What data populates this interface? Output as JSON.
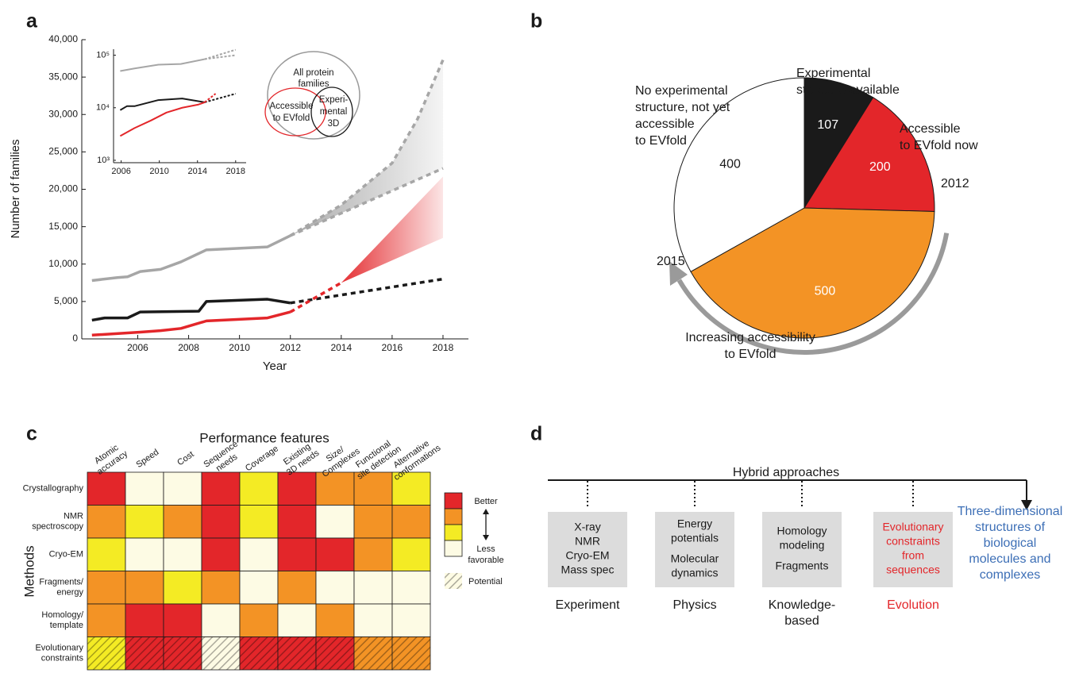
{
  "chart_data": [
    {
      "type": "line",
      "panel_label": "a",
      "xlabel": "Year",
      "ylabel": "Number of families",
      "xlim": [
        2003.8,
        2019
      ],
      "ylim": [
        0,
        40000
      ],
      "xticks": [
        2006,
        2008,
        2010,
        2012,
        2014,
        2016,
        2018
      ],
      "yticks": [
        0,
        {
          "value": 5000,
          "label": "5,000"
        },
        {
          "value": 10000,
          "label": "10,000"
        },
        {
          "value": 15000,
          "label": "15,000"
        },
        {
          "value": 20000,
          "label": "20,000"
        },
        {
          "value": 25000,
          "label": "25,000"
        },
        {
          "value": 30000,
          "label": "30,000"
        },
        {
          "value": 35000,
          "label": "35,000"
        },
        {
          "value": 40000,
          "label": "40,000"
        }
      ],
      "bands": [
        {
          "color": "#a6a6a6",
          "x": [
            2012,
            2014,
            2016,
            2017,
            2018
          ],
          "lower": [
            13800,
            16800,
            19800,
            21300,
            22800
          ],
          "upper": [
            13800,
            17900,
            23500,
            29400,
            37300
          ]
        },
        {
          "color": "#e3262a",
          "x": [
            2014,
            2018
          ],
          "lower": [
            7500,
            13500
          ],
          "upper": [
            7500,
            21700
          ]
        }
      ],
      "series": [
        {
          "color": "#a6a6a6",
          "x": [
            2004.2,
            2005.2,
            2005.6,
            2006.1,
            2006.9,
            2007.7,
            2008.7,
            2011.1,
            2012.0
          ],
          "values": [
            7800,
            8200,
            8300,
            9000,
            9300,
            10300,
            11900,
            12300,
            13800
          ]
        },
        {
          "color": "#1a1a1a",
          "x": [
            2004.2,
            2004.7,
            2005.6,
            2006.1,
            2008.4,
            2008.7,
            2011.1,
            2012.0
          ],
          "values": [
            2500,
            2800,
            2800,
            3600,
            3700,
            5000,
            5300,
            4800
          ]
        },
        {
          "color": "#e3262a",
          "x": [
            2004.2,
            2006.1,
            2006.9,
            2007.7,
            2008.7,
            2011.1,
            2012.0
          ],
          "values": [
            500,
            900,
            1100,
            1400,
            2400,
            2800,
            3600
          ]
        },
        {
          "color": "#a6a6a6",
          "dashed": true,
          "x": [
            2012,
            2014,
            2016,
            2017,
            2018
          ],
          "values": [
            13800,
            17900,
            23500,
            29400,
            37300
          ]
        },
        {
          "color": "#a6a6a6",
          "dashed": true,
          "x": [
            2012,
            2018
          ],
          "values": [
            13800,
            22800
          ]
        },
        {
          "color": "#1a1a1a",
          "dashed": true,
          "x": [
            2012,
            2018
          ],
          "values": [
            4800,
            8000
          ]
        },
        {
          "color": "#e3262a",
          "dashed": true,
          "x": [
            2012,
            2014
          ],
          "values": [
            3600,
            7500
          ]
        }
      ],
      "venn": {
        "outer": [
          "All protein",
          "families"
        ],
        "left": [
          "Accessible",
          "to EVfold"
        ],
        "right": [
          "Experi-",
          "mental",
          "3D"
        ]
      }
    },
    {
      "type": "line",
      "log_y": true,
      "xlim": [
        2005.2,
        2019.1
      ],
      "ylim": [
        900,
        130000
      ],
      "xticks": [
        2006,
        2010,
        2014,
        2018
      ],
      "yticks": [
        {
          "value": 1000,
          "label": "10³"
        },
        {
          "value": 10000,
          "label": "10⁴"
        },
        {
          "value": 100000,
          "label": "10⁵"
        }
      ],
      "series": [
        {
          "color": "#a6a6a6",
          "x": [
            2005.9,
            2007.4,
            2009.9,
            2012.25,
            2014.75
          ],
          "values": [
            50000,
            56000,
            66000,
            68000,
            84000
          ]
        },
        {
          "color": "#1a1a1a",
          "x": [
            2005.9,
            2006.6,
            2007.4,
            2009.9,
            2012.4,
            2014.75
          ],
          "values": [
            9000,
            10700,
            10700,
            14000,
            15000,
            12700
          ]
        },
        {
          "color": "#e3262a",
          "x": [
            2005.9,
            2007.4,
            2009.1,
            2010.75,
            2012.4,
            2014.1,
            2014.75
          ],
          "values": [
            2900,
            4100,
            5700,
            8100,
            10000,
            11500,
            12700
          ]
        },
        {
          "color": "#a6a6a6",
          "dashed": true,
          "x": [
            2014.75,
            2018
          ],
          "values": [
            84000,
            127000
          ]
        },
        {
          "color": "#a6a6a6",
          "dashed": true,
          "x": [
            2014.75,
            2018
          ],
          "values": [
            84000,
            100000
          ]
        },
        {
          "color": "#1a1a1a",
          "dashed": true,
          "x": [
            2014.75,
            2018
          ],
          "values": [
            12700,
            18500
          ]
        },
        {
          "color": "#e3262a",
          "dashed": true,
          "x": [
            2014.75,
            2015.9
          ],
          "values": [
            12700,
            18500
          ]
        }
      ]
    },
    {
      "type": "pie",
      "panel_label": "b",
      "values": [
        107,
        200,
        500,
        400
      ],
      "colors": [
        "#1a1a1a",
        "#e3262a",
        "#f39325",
        "#ffffff"
      ],
      "categories": [
        [
          "Experimental",
          "structure available"
        ],
        [
          "Accessible",
          "to EVfold now"
        ],
        null,
        [
          "No experimental",
          "structure, not yet",
          "accessible",
          "to EVfold"
        ]
      ],
      "annotations": {
        "start": "2012",
        "end": "2015",
        "arrow_label": [
          "Increasing accessibility",
          "to EVfold"
        ]
      }
    },
    {
      "type": "heatmap",
      "panel_label": "c",
      "title": "Performance features",
      "ylabel": "Methods",
      "columns": [
        [
          "Atomic",
          "accuracy"
        ],
        [
          "Speed"
        ],
        [
          "Cost"
        ],
        [
          "Sequence",
          "needs"
        ],
        [
          "Coverage"
        ],
        [
          "Existing",
          "3D needs"
        ],
        [
          "Size/",
          "Complexes"
        ],
        [
          "Functional",
          "site detection"
        ],
        [
          "Alternative",
          "conformations"
        ]
      ],
      "rows": [
        [
          "Crystallography"
        ],
        [
          "NMR",
          "spectroscopy"
        ],
        [
          "Cryo-EM"
        ],
        [
          "Fragments/",
          "energy"
        ],
        [
          "Homology/",
          "template"
        ],
        [
          "Evolutionary",
          "constraints"
        ]
      ],
      "levels": [
        {
          "value": 4,
          "color": "#e3262a"
        },
        {
          "value": 3,
          "color": "#f39325"
        },
        {
          "value": 2,
          "color": "#f4eb24"
        },
        {
          "value": 1,
          "color": "#fdfbe4"
        }
      ],
      "values": [
        [
          4,
          1,
          1,
          4,
          2,
          4,
          3,
          3,
          2
        ],
        [
          3,
          2,
          3,
          4,
          2,
          4,
          1,
          3,
          3
        ],
        [
          2,
          1,
          1,
          4,
          1,
          4,
          4,
          3,
          2
        ],
        [
          3,
          3,
          2,
          3,
          1,
          3,
          1,
          1,
          1
        ],
        [
          3,
          4,
          4,
          1,
          3,
          1,
          3,
          1,
          1
        ],
        [
          2,
          4,
          4,
          1,
          4,
          4,
          4,
          3,
          3
        ]
      ],
      "potential": [
        false,
        false,
        false,
        false,
        false,
        true
      ],
      "legend": {
        "better": "Better",
        "less": [
          "Less",
          "favorable"
        ],
        "potential": "Potential"
      }
    }
  ],
  "diagram": {
    "panel_label": "d",
    "title": "Hybrid approaches",
    "boxes": [
      {
        "groups": [
          [
            "X-ray",
            "NMR",
            "Cryo-EM",
            "Mass spec"
          ]
        ],
        "caption": [
          "Experiment"
        ]
      },
      {
        "groups": [
          [
            "Energy",
            "potentials"
          ],
          [
            "Molecular",
            "dynamics"
          ]
        ],
        "caption": [
          "Physics"
        ]
      },
      {
        "groups": [
          [
            "Homology",
            "modeling"
          ],
          [
            "Fragments"
          ]
        ],
        "caption": [
          "Knowledge-",
          "based"
        ]
      },
      {
        "groups": [
          [
            "Evolutionary",
            "constraints",
            "from",
            "sequences"
          ]
        ],
        "caption": [
          "Evolution"
        ],
        "highlight": true
      }
    ],
    "target": [
      "Three-dimensional",
      "structures of",
      "biological",
      "molecules and",
      "complexes"
    ]
  }
}
